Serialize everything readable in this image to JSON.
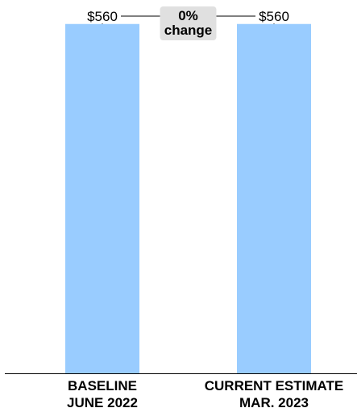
{
  "chart_data": {
    "type": "bar",
    "categories": [
      [
        "BASELINE",
        "JUNE 2022"
      ],
      [
        "CURRENT ESTIMATE",
        "MAR. 2023"
      ]
    ],
    "values": [
      560,
      560
    ],
    "data_labels": [
      "$560",
      "$560"
    ],
    "annotation": [
      "0%",
      "change"
    ],
    "ylim": [
      0,
      570
    ],
    "grid": false,
    "bar_color": "#99ccff",
    "annotation_bg": "#e0e0e0"
  }
}
